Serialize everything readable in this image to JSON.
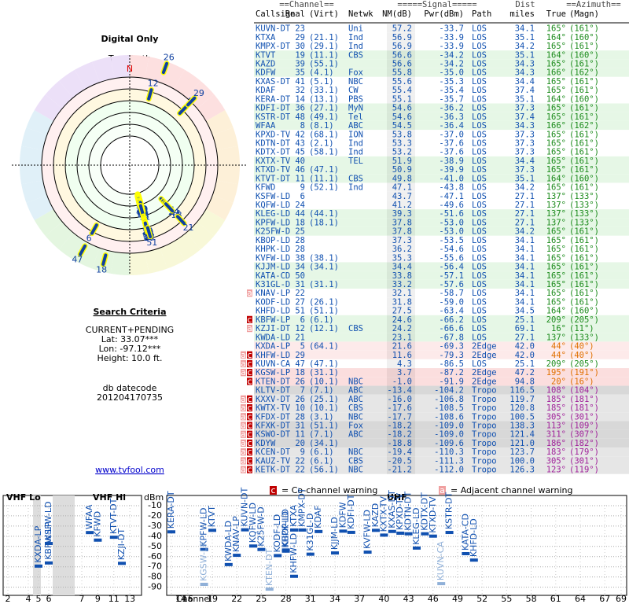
{
  "page": {
    "title": "Digital Only",
    "north": "TrueNorth",
    "north_mark": "N",
    "criteria_title": "Search Criteria",
    "criteria": [
      "CURRENT+PENDING",
      "Lat: 33.07***",
      "Lon: -97.12***",
      "Height: 10.0 ft."
    ],
    "datecode_label": "db datecode",
    "datecode": "201204170735",
    "link": "www.tvfool.com"
  },
  "table": {
    "groups": [
      "==Channel==",
      "=====Signal=====",
      "Dist",
      "==Azimuth=="
    ],
    "columns": [
      "Callsign",
      "Real",
      "(Virt)",
      "Netwk",
      "NM(dB)",
      "Pwr(dBm)",
      "Path",
      "miles",
      "True",
      "(Magn)"
    ],
    "rows": [
      {
        "c": [
          "KUVN-DT",
          "23",
          "",
          "Uni",
          "57.2",
          "-33.7",
          "LOS",
          "34.1",
          "165°",
          "(161°)"
        ]
      },
      {
        "c": [
          "KTXA",
          "29",
          "(21.1)",
          "Ind",
          "56.9",
          "-33.9",
          "LOS",
          "35.1",
          "164°",
          "(160°)"
        ]
      },
      {
        "c": [
          "KMPX-DT",
          "30",
          "(29.1)",
          "Ind",
          "56.9",
          "-33.9",
          "LOS",
          "34.2",
          "165°",
          "(161°)"
        ]
      },
      {
        "c": [
          "KTVT",
          "19",
          "(11.1)",
          "CBS",
          "56.6",
          "-34.2",
          "LOS",
          "35.1",
          "164°",
          "(160°)"
        ]
      },
      {
        "c": [
          "KAZD",
          "39",
          "(55.1)",
          "",
          "56.6",
          "-34.2",
          "LOS",
          "34.3",
          "165°",
          "(161°)"
        ]
      },
      {
        "c": [
          "KDFW",
          "35",
          "(4.1)",
          "Fox",
          "55.8",
          "-35.0",
          "LOS",
          "34.3",
          "166°",
          "(162°)"
        ]
      },
      {
        "c": [
          "KXAS-DT",
          "41",
          "(5.1)",
          "NBC",
          "55.6",
          "-35.3",
          "LOS",
          "34.4",
          "165°",
          "(161°)"
        ]
      },
      {
        "c": [
          "KDAF",
          "32",
          "(33.1)",
          "CW",
          "55.4",
          "-35.4",
          "LOS",
          "37.4",
          "165°",
          "(161°)"
        ]
      },
      {
        "c": [
          "KERA-DT",
          "14",
          "(13.1)",
          "PBS",
          "55.1",
          "-35.7",
          "LOS",
          "35.1",
          "164°",
          "(160°)"
        ]
      },
      {
        "c": [
          "KDFI-DT",
          "36",
          "(27.1)",
          "MyN",
          "54.6",
          "-36.2",
          "LOS",
          "37.3",
          "165°",
          "(161°)"
        ]
      },
      {
        "c": [
          "KSTR-DT",
          "48",
          "(49.1)",
          "Tel",
          "54.6",
          "-36.3",
          "LOS",
          "37.4",
          "165°",
          "(161°)"
        ]
      },
      {
        "c": [
          "WFAA",
          "8",
          "(8.1)",
          "ABC",
          "54.5",
          "-36.4",
          "LOS",
          "34.3",
          "166°",
          "(162°)"
        ]
      },
      {
        "c": [
          "KPXD-TV",
          "42",
          "(68.1)",
          "ION",
          "53.8",
          "-37.0",
          "LOS",
          "37.3",
          "165°",
          "(161°)"
        ]
      },
      {
        "c": [
          "KDTN-DT",
          "43",
          "(2.1)",
          "Ind",
          "53.3",
          "-37.6",
          "LOS",
          "37.3",
          "165°",
          "(161°)"
        ]
      },
      {
        "c": [
          "KDTX-DT",
          "45",
          "(58.1)",
          "Ind",
          "53.2",
          "-37.6",
          "LOS",
          "37.3",
          "165°",
          "(161°)"
        ]
      },
      {
        "c": [
          "KXTX-TV",
          "40",
          "",
          "TEL",
          "51.9",
          "-38.9",
          "LOS",
          "34.4",
          "165°",
          "(161°)"
        ]
      },
      {
        "c": [
          "KTXD-TV",
          "46",
          "(47.1)",
          "",
          "50.9",
          "-39.9",
          "LOS",
          "37.3",
          "165°",
          "(161°)"
        ]
      },
      {
        "c": [
          "KTVT-DT",
          "11",
          "(11.1)",
          "CBS",
          "49.8",
          "-41.0",
          "LOS",
          "35.1",
          "164°",
          "(160°)"
        ]
      },
      {
        "c": [
          "KFWD",
          "9",
          "(52.1)",
          "Ind",
          "47.1",
          "-43.8",
          "LOS",
          "34.2",
          "165°",
          "(161°)"
        ]
      },
      {
        "c": [
          "KSFW-LD",
          "6",
          "",
          "",
          "43.7",
          "-47.1",
          "LOS",
          "27.1",
          "137°",
          "(133°)"
        ]
      },
      {
        "c": [
          "KQFW-LD",
          "24",
          "",
          "",
          "41.2",
          "-49.6",
          "LOS",
          "27.1",
          "137°",
          "(133°)"
        ]
      },
      {
        "c": [
          "KLEG-LD",
          "44",
          "(44.1)",
          "",
          "39.3",
          "-51.6",
          "LOS",
          "27.1",
          "137°",
          "(133°)"
        ]
      },
      {
        "c": [
          "KPFW-LD",
          "18",
          "(18.1)",
          "",
          "37.8",
          "-53.0",
          "LOS",
          "27.1",
          "137°",
          "(133°)"
        ]
      },
      {
        "c": [
          "K25FW-D",
          "25",
          "",
          "",
          "37.8",
          "-53.0",
          "LOS",
          "34.2",
          "165°",
          "(161°)"
        ]
      },
      {
        "c": [
          "KBOP-LD",
          "28",
          "",
          "",
          "37.3",
          "-53.5",
          "LOS",
          "34.1",
          "165°",
          "(161°)"
        ]
      },
      {
        "c": [
          "KHPK-LD",
          "28",
          "",
          "",
          "36.2",
          "-54.6",
          "LOS",
          "34.1",
          "165°",
          "(161°)"
        ]
      },
      {
        "c": [
          "KVFW-LD",
          "38",
          "(38.1)",
          "",
          "35.3",
          "-55.6",
          "LOS",
          "34.1",
          "165°",
          "(161°)"
        ]
      },
      {
        "c": [
          "KJJM-LD",
          "34",
          "(34.1)",
          "",
          "34.4",
          "-56.4",
          "LOS",
          "34.1",
          "165°",
          "(161°)"
        ]
      },
      {
        "c": [
          "KATA-CD",
          "50",
          "",
          "",
          "33.8",
          "-57.1",
          "LOS",
          "34.1",
          "165°",
          "(161°)"
        ]
      },
      {
        "c": [
          "K31GL-D",
          "31",
          "(31.1)",
          "",
          "33.2",
          "-57.6",
          "LOS",
          "34.1",
          "165°",
          "(161°)"
        ]
      },
      {
        "c": [
          "KNAV-LP",
          "22",
          "",
          "",
          "32.1",
          "-58.7",
          "LOS",
          "34.1",
          "165°",
          "(161°)"
        ],
        "w": [
          "a"
        ]
      },
      {
        "c": [
          "KODF-LD",
          "27",
          "(26.1)",
          "",
          "31.8",
          "-59.0",
          "LOS",
          "34.1",
          "165°",
          "(161°)"
        ]
      },
      {
        "c": [
          "KHFD-LD",
          "51",
          "(51.1)",
          "",
          "27.5",
          "-63.4",
          "LOS",
          "34.5",
          "164°",
          "(160°)"
        ]
      },
      {
        "c": [
          "KBFW-LP",
          "6",
          "(6.1)",
          "",
          "24.6",
          "-66.2",
          "LOS",
          "25.1",
          "209°",
          "(205°)"
        ],
        "w": [
          "c"
        ]
      },
      {
        "c": [
          "KZJI-DT",
          "12",
          "(12.1)",
          "CBS",
          "24.2",
          "-66.6",
          "LOS",
          "69.1",
          "16°",
          "(11°)"
        ],
        "w": [
          "a"
        ]
      },
      {
        "c": [
          "KWDA-LD",
          "21",
          "",
          "",
          "23.1",
          "-67.8",
          "LOS",
          "27.1",
          "137°",
          "(133°)"
        ]
      },
      {
        "c": [
          "KXDA-LP",
          "5",
          "(64.1)",
          "",
          "21.6",
          "-69.3",
          "2Edge",
          "42.0",
          "44°",
          "(40°)"
        ]
      },
      {
        "c": [
          "KHFW-LD",
          "29",
          "",
          "",
          "11.6",
          "-79.3",
          "2Edge",
          "42.0",
          "44°",
          "(40°)"
        ],
        "w": [
          "a",
          "c"
        ]
      },
      {
        "c": [
          "KUVN-CA",
          "47",
          "(47.1)",
          "",
          "4.3",
          "-86.5",
          "LOS",
          "25.1",
          "209°",
          "(205°)"
        ],
        "w": [
          "a",
          "c"
        ]
      },
      {
        "c": [
          "KGSW-LP",
          "18",
          "(31.1)",
          "",
          "3.7",
          "-87.2",
          "2Edge",
          "47.2",
          "195°",
          "(191°)"
        ],
        "w": [
          "a",
          "c"
        ]
      },
      {
        "c": [
          "KTEN-DT",
          "26",
          "(10.1)",
          "NBC",
          "-1.0",
          "-91.9",
          "2Edge",
          "94.8",
          "20°",
          "(16°)"
        ],
        "w": [
          "c"
        ]
      },
      {
        "c": [
          "KLTV-DT",
          "7",
          "(7.1)",
          "ABC",
          "-13.4",
          "-104.2",
          "Tropo",
          "116.5",
          "108°",
          "(104°)"
        ]
      },
      {
        "c": [
          "KXXV-DT",
          "26",
          "(25.1)",
          "ABC",
          "-16.0",
          "-106.8",
          "Tropo",
          "119.7",
          "185°",
          "(181°)"
        ],
        "w": [
          "a",
          "c"
        ]
      },
      {
        "c": [
          "KWTX-TV",
          "10",
          "(10.1)",
          "CBS",
          "-17.6",
          "-108.5",
          "Tropo",
          "120.8",
          "185°",
          "(181°)"
        ],
        "w": [
          "a",
          "c"
        ]
      },
      {
        "c": [
          "KFDX-DT",
          "28",
          "(3.1)",
          "NBC",
          "-17.7",
          "-108.6",
          "Tropo",
          "100.5",
          "305°",
          "(301°)"
        ],
        "w": [
          "a",
          "c"
        ]
      },
      {
        "c": [
          "KFXK-DT",
          "31",
          "(51.1)",
          "Fox",
          "-18.2",
          "-109.0",
          "Tropo",
          "138.3",
          "113°",
          "(109°)"
        ],
        "w": [
          "a",
          "c"
        ]
      },
      {
        "c": [
          "KSWO-DT",
          "11",
          "(7.1)",
          "ABC",
          "-18.2",
          "-109.0",
          "Tropo",
          "121.4",
          "311°",
          "(307°)"
        ],
        "w": [
          "a",
          "c"
        ]
      },
      {
        "c": [
          "KDYW",
          "20",
          "(34.1)",
          "",
          "-18.8",
          "-109.6",
          "Tropo",
          "121.0",
          "186°",
          "(182°)"
        ],
        "w": [
          "a",
          "c"
        ]
      },
      {
        "c": [
          "KCEN-DT",
          "9",
          "(6.1)",
          "NBC",
          "-19.4",
          "-110.3",
          "Tropo",
          "123.7",
          "183°",
          "(179°)"
        ],
        "w": [
          "a",
          "c"
        ]
      },
      {
        "c": [
          "KAUZ-TV",
          "22",
          "(6.1)",
          "CBS",
          "-20.5",
          "-111.3",
          "Tropo",
          "100.0",
          "305°",
          "(301°)"
        ],
        "w": [
          "a",
          "c"
        ]
      },
      {
        "c": [
          "KETK-DT",
          "22",
          "(56.1)",
          "NBC",
          "-21.2",
          "-112.0",
          "Tropo",
          "126.3",
          "123°",
          "(119°)"
        ],
        "w": [
          "a",
          "c"
        ]
      }
    ]
  },
  "legend": {
    "co": "c",
    "co_text": "= Co-channel warning",
    "adj": "a",
    "adj_text": "= Adjacent channel warning"
  },
  "spectrum": {
    "vhf_lo": "VHF Lo",
    "vhf_hi": "VHF Hi",
    "uhf": "UHF",
    "unit": "dBm",
    "x_label": "Channel",
    "ylim": [
      0,
      -98
    ],
    "yticks": [
      -10,
      -20,
      -30,
      -40,
      -50,
      -60,
      -70,
      -80,
      -90
    ],
    "vhf_ticks": [
      2,
      4,
      5,
      6,
      7,
      9,
      11,
      13
    ],
    "uhf_ticks": [
      14,
      16,
      19,
      22,
      25,
      28,
      31,
      34,
      37,
      40,
      43,
      46,
      49,
      52,
      55,
      58,
      61,
      64,
      67,
      69
    ]
  }
}
